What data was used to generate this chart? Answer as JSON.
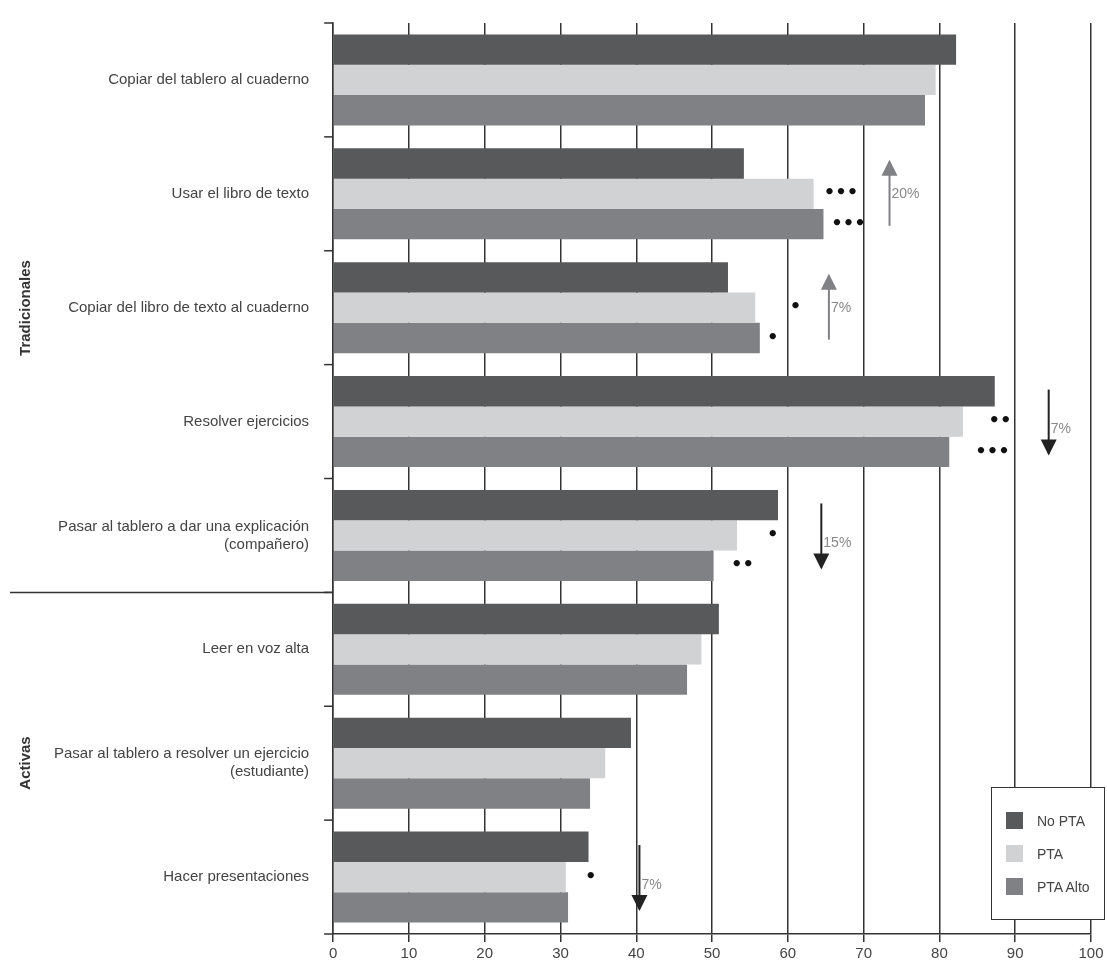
{
  "chart_data": {
    "type": "bar",
    "orientation": "horizontal",
    "categories": [
      "Copiar del tablero al cuaderno",
      "Usar el libro de texto",
      "Copiar del libro de texto al cuaderno",
      "Resolver ejercicios",
      "Pasar al tablero a dar una explicación (compañero)",
      "Leer en voz alta",
      "Pasar al tablero a resolver un ejercicio (estudiante)",
      "Hacer presentaciones"
    ],
    "series": [
      {
        "name": "No PTA",
        "color": "#58595b",
        "values": [
          82.2,
          54.2,
          52.1,
          87.3,
          58.7,
          50.9,
          39.3,
          33.7
        ]
      },
      {
        "name": "PTA",
        "color": "#d1d2d4",
        "values": [
          79.5,
          63.4,
          55.7,
          83.1,
          53.3,
          48.6,
          35.9,
          30.7
        ]
      },
      {
        "name": "PTA Alto",
        "color": "#808184",
        "values": [
          78.1,
          64.7,
          56.3,
          81.3,
          50.2,
          46.7,
          33.9,
          31.0
        ]
      }
    ],
    "xlim": [
      0,
      100
    ],
    "xticks": [
      0,
      10,
      20,
      30,
      40,
      50,
      60,
      70,
      80,
      90,
      100
    ],
    "grid": "x",
    "legend": "bottom right",
    "annotations": [
      "Tradicionales",
      "Activas",
      "•••",
      "•••",
      "20%",
      "•",
      "•",
      "7%",
      "••",
      "•••",
      "7%",
      "•",
      "••",
      "15%",
      "•",
      "7%"
    ]
  }
}
